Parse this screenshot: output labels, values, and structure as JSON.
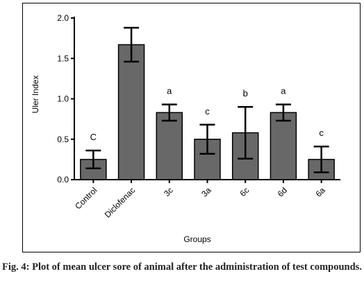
{
  "chart_data": {
    "type": "bar",
    "categories": [
      "Control",
      "Diclofenac",
      "3c",
      "3a",
      "6c",
      "6d",
      "6a"
    ],
    "values": [
      0.25,
      1.67,
      0.83,
      0.5,
      0.58,
      0.83,
      0.25
    ],
    "errors": [
      0.11,
      0.21,
      0.1,
      0.18,
      0.32,
      0.1,
      0.16
    ],
    "significance_letters": [
      "C",
      "",
      "a",
      "c",
      "b",
      "a",
      "c"
    ],
    "xlabel": "Groups",
    "ylabel": "Uler Index",
    "ylim": [
      0,
      2.0
    ],
    "yticks": [
      "0.0",
      "0.5",
      "1.0",
      "1.5",
      "2.0"
    ],
    "bar_color": "#686868",
    "grid": false
  },
  "caption": "Fig. 4: Plot of mean ulcer sore of animal after the administration of test compounds."
}
